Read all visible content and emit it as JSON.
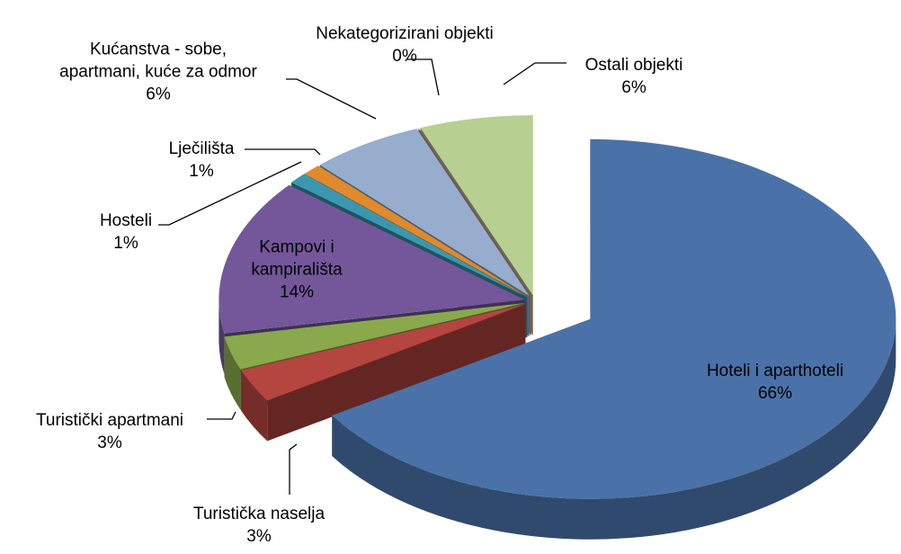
{
  "chart_data": {
    "type": "pie",
    "categories": [
      "Hoteli i aparthoteli",
      "Turistička naselja",
      "Turistički apartmani",
      "Kampovi i\nkampirališta",
      "Hosteli",
      "Lječilišta",
      "Kućanstva - sobe,\napartmani, kuće za odmor",
      "Nekategorizirani objekti",
      "Ostali objekti"
    ],
    "values": [
      66,
      3,
      3,
      14,
      1,
      1,
      6,
      0,
      6
    ],
    "value_labels": [
      "66%",
      "3%",
      "3%",
      "14%",
      "1%",
      "1%",
      "6%",
      "0%",
      "6%"
    ],
    "colors": [
      "#4a72a8",
      "#b5453f",
      "#8aa84c",
      "#73579a",
      "#3b97b0",
      "#e08a2e",
      "#97adce",
      "#d59899",
      "#b8cf92"
    ]
  }
}
